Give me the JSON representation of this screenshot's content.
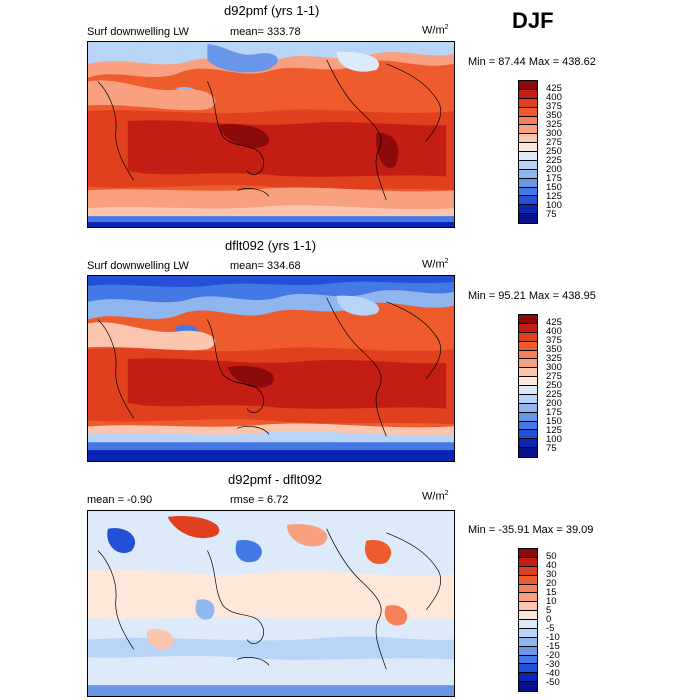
{
  "header": {
    "season": "DJF"
  },
  "panels": [
    {
      "title": "d92pmf (yrs 1-1)",
      "variable": "Surf downwelling LW",
      "stat_left": "",
      "stat_mid": "mean= 333.78",
      "units": "W/m",
      "units_sup": "2",
      "minmax": "Min =  87.44 Max = 438.62",
      "levels": [
        "425",
        "400",
        "375",
        "350",
        "325",
        "300",
        "275",
        "250",
        "225",
        "200",
        "175",
        "150",
        "125",
        "100",
        "75"
      ],
      "colors": [
        "#8c0a0a",
        "#c41e14",
        "#e0401e",
        "#ee5c2e",
        "#f5805a",
        "#f8a080",
        "#fcc6ae",
        "#ffe8da",
        "#dceafa",
        "#b8d4f6",
        "#90b6f0",
        "#6a96ea",
        "#4478e4",
        "#2450d8",
        "#0a24b4",
        "#06108c"
      ]
    },
    {
      "title": "dflt092 (yrs 1-1)",
      "variable": "Surf downwelling LW",
      "stat_left": "",
      "stat_mid": "mean= 334.68",
      "units": "W/m",
      "units_sup": "2",
      "minmax": "Min =  95.21 Max = 438.95",
      "levels": [
        "425",
        "400",
        "375",
        "350",
        "325",
        "300",
        "275",
        "250",
        "225",
        "200",
        "175",
        "150",
        "125",
        "100",
        "75"
      ],
      "colors": [
        "#8c0a0a",
        "#c41e14",
        "#e0401e",
        "#ee5c2e",
        "#f5805a",
        "#f8a080",
        "#fcc6ae",
        "#ffe8da",
        "#dceafa",
        "#b8d4f6",
        "#90b6f0",
        "#6a96ea",
        "#4478e4",
        "#2450d8",
        "#0a24b4",
        "#06108c"
      ]
    },
    {
      "title": "d92pmf - dflt092",
      "variable": "",
      "stat_left": "mean =   -0.90",
      "stat_mid": "rmse =    6.72",
      "units": "W/m",
      "units_sup": "2",
      "minmax": "Min = -35.91 Max =  39.09",
      "levels": [
        "50",
        "40",
        "30",
        "20",
        "15",
        "10",
        "5",
        "0",
        "-5",
        "-10",
        "-15",
        "-20",
        "-30",
        "-40",
        "-50"
      ],
      "colors": [
        "#8c0a0a",
        "#c41e14",
        "#e0401e",
        "#ee5c2e",
        "#f5805a",
        "#f8a080",
        "#fcc6ae",
        "#ffe8da",
        "#dceafa",
        "#b8d4f6",
        "#90b6f0",
        "#6a96ea",
        "#4478e4",
        "#2450d8",
        "#0a24b4",
        "#06108c"
      ]
    }
  ]
}
